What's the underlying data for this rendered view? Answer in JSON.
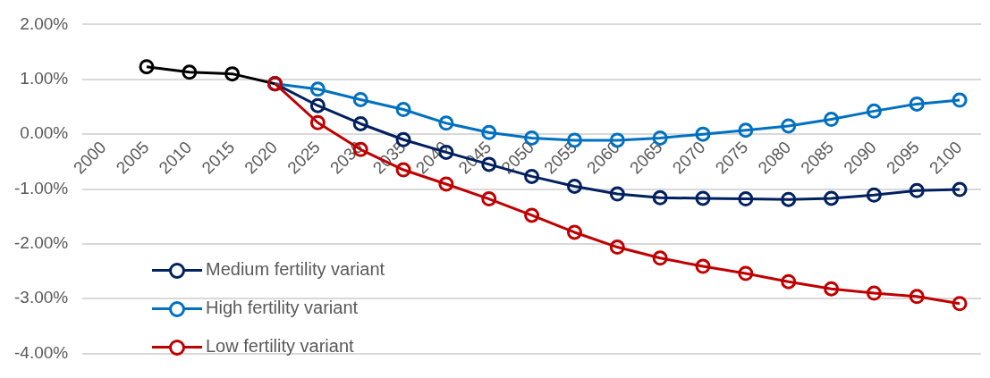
{
  "chart_data": {
    "type": "line",
    "categories": [
      "2000",
      "2005",
      "2010",
      "2015",
      "2020",
      "2025",
      "2030",
      "2035",
      "2040",
      "2045",
      "2050",
      "2055",
      "2060",
      "2065",
      "2070",
      "2075",
      "2080",
      "2085",
      "2090",
      "2095",
      "2100"
    ],
    "series": [
      {
        "color": "#000000",
        "values": [
          null,
          1.23,
          1.13,
          1.1,
          0.92,
          null,
          null,
          null,
          null,
          null,
          null,
          null,
          null,
          null,
          null,
          null,
          null,
          null,
          null,
          null,
          null
        ]
      },
      {
        "name": "Medium fertility variant",
        "color": "#002060",
        "values": [
          null,
          null,
          null,
          null,
          0.92,
          0.52,
          0.19,
          -0.1,
          -0.33,
          -0.55,
          -0.77,
          -0.95,
          -1.09,
          -1.16,
          -1.17,
          -1.18,
          -1.19,
          -1.17,
          -1.11,
          -1.03,
          -1.01
        ]
      },
      {
        "name": "High fertility variant",
        "color": "#0070c0",
        "values": [
          null,
          null,
          null,
          null,
          0.92,
          0.82,
          0.63,
          0.45,
          0.2,
          0.03,
          -0.07,
          -0.11,
          -0.11,
          -0.07,
          0.0,
          0.07,
          0.15,
          0.27,
          0.42,
          0.55,
          0.62
        ]
      },
      {
        "name": "Low fertility variant",
        "color": "#c00000",
        "values": [
          null,
          null,
          null,
          null,
          0.92,
          0.21,
          -0.28,
          -0.65,
          -0.91,
          -1.18,
          -1.48,
          -1.79,
          -2.06,
          -2.26,
          -2.41,
          -2.54,
          -2.69,
          -2.82,
          -2.9,
          -2.96,
          -3.09
        ]
      }
    ],
    "ylim": [
      -4,
      2
    ],
    "yticks": [
      {
        "value": -4,
        "label": "-4.00%"
      },
      {
        "value": -3,
        "label": "-3.00%"
      },
      {
        "value": -2,
        "label": "-2.00%"
      },
      {
        "value": -1,
        "label": "-1.00%"
      },
      {
        "value": 0,
        "label": "0.00%"
      },
      {
        "value": 1,
        "label": "1.00%"
      },
      {
        "value": 2,
        "label": "2.00%"
      }
    ],
    "grid": "y",
    "legend": "bottom left",
    "marker": "circle",
    "line_style": "solid"
  }
}
